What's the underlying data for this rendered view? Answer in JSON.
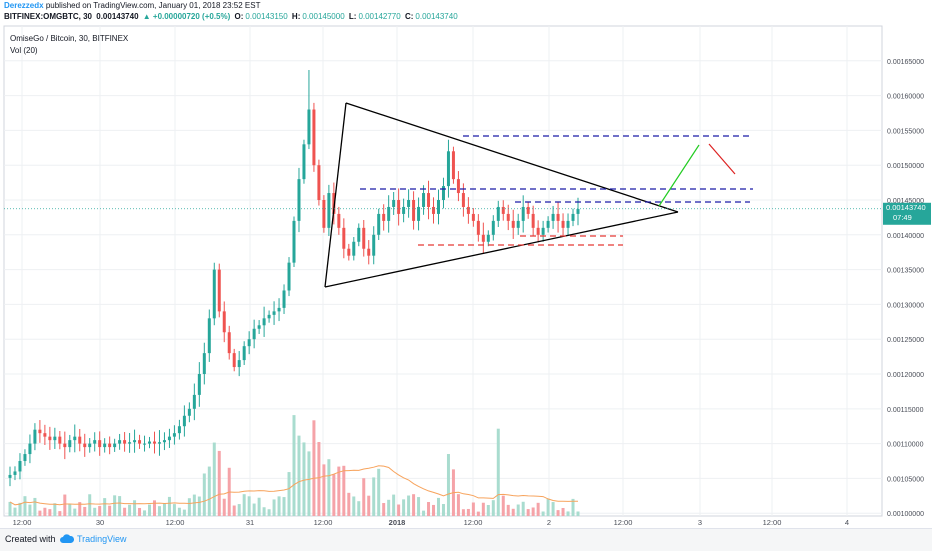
{
  "header": {
    "author": "Derezzedx",
    "published_text": "published on TradingView.com, January 01, 2018 23:52 EST",
    "symbol": "BITFINEX:OMGBTC, 30",
    "last_price": "0.00143740",
    "change": "▲ +0.00000720 (+0.5%)",
    "o_label": "O:",
    "o_value": "0.00143150",
    "h_label": "H:",
    "h_value": "0.00145000",
    "l_label": "L:",
    "l_value": "0.00142770",
    "c_label": "C:",
    "c_value": "0.00143740"
  },
  "legend": {
    "title": "OmiseGo / Bitcoin, 30, BITFINEX",
    "volume": "Vol (20)"
  },
  "price_badge": {
    "price": "0.00143740",
    "countdown": "07:49"
  },
  "footer": {
    "created_with": "Created with",
    "brand": "TradingView"
  },
  "colors": {
    "up": "#26a69a",
    "down": "#ef5350",
    "volume_up": "#a9dccf",
    "volume_down": "#f5a3a8",
    "volume_ma": "#f7a35c",
    "triangle": "#000000",
    "resistance": "#1a1aa6",
    "support": "#e53935",
    "projection_up": "#22cc22",
    "projection_down": "#dd2222",
    "grid": "#eef0f3",
    "price_line": "#26a69a"
  },
  "chart_data": {
    "type": "candlestick",
    "title": "OmiseGo / Bitcoin, 30, BITFINEX",
    "x_tick_labels": [
      "12:00",
      "30",
      "12:00",
      "31",
      "12:00",
      "2018",
      "12:00",
      "2",
      "12:00",
      "3",
      "12:00",
      "4"
    ],
    "y_tick_labels": [
      "0.00100000",
      "0.00105000",
      "0.00110000",
      "0.00115000",
      "0.00120000",
      "0.00125000",
      "0.00130000",
      "0.00135000",
      "0.00140000",
      "0.00145000",
      "0.00150000",
      "0.00155000",
      "0.00160000",
      "0.00165000"
    ],
    "y_ticks": [
      0.001,
      0.00105,
      0.0011,
      0.00115,
      0.0012,
      0.00125,
      0.0013,
      0.00135,
      0.0014,
      0.00145,
      0.0015,
      0.00155,
      0.0016,
      0.00165
    ],
    "ylim": [
      0.000996,
      0.0017
    ],
    "grid": true,
    "last_close": 0.0014374,
    "price_path_closes": [
      0.001055,
      0.00106,
      0.001075,
      0.001085,
      0.0011,
      0.00112,
      0.001115,
      0.00111,
      0.001105,
      0.00111,
      0.0011,
      0.001095,
      0.001105,
      0.00111,
      0.0011,
      0.001095,
      0.0011,
      0.001105,
      0.001095,
      0.0011,
      0.001095,
      0.0011,
      0.001105,
      0.0011,
      0.001102,
      0.001105,
      0.0011,
      0.0011,
      0.001103,
      0.0011,
      0.001102,
      0.001105,
      0.00111,
      0.001115,
      0.001125,
      0.00114,
      0.00115,
      0.00117,
      0.0012,
      0.00123,
      0.00128,
      0.00135,
      0.00129,
      0.00126,
      0.00123,
      0.00121,
      0.00122,
      0.00124,
      0.00125,
      0.001265,
      0.00127,
      0.00128,
      0.001285,
      0.00129,
      0.001295,
      0.00132,
      0.00136,
      0.00142,
      0.00148,
      0.00153,
      0.00158,
      0.0015,
      0.00145,
      0.00141,
      0.00146,
      0.00143,
      0.00141,
      0.00138,
      0.00137,
      0.00139,
      0.00141,
      0.00138,
      0.00137,
      0.0014,
      0.00143,
      0.00142,
      0.00144,
      0.00145,
      0.00143,
      0.00144,
      0.00145,
      0.00142,
      0.00144,
      0.00146,
      0.00144,
      0.00143,
      0.00145,
      0.00147,
      0.00152,
      0.00148,
      0.00146,
      0.00144,
      0.00143,
      0.00142,
      0.0014,
      0.00139,
      0.0014,
      0.00142,
      0.00144,
      0.00143,
      0.00142,
      0.00141,
      0.00142,
      0.00144,
      0.00143,
      0.00141,
      0.0014,
      0.00141,
      0.00142,
      0.00143,
      0.00142,
      0.00141,
      0.00142,
      0.00143,
      0.001437
    ]
  }
}
